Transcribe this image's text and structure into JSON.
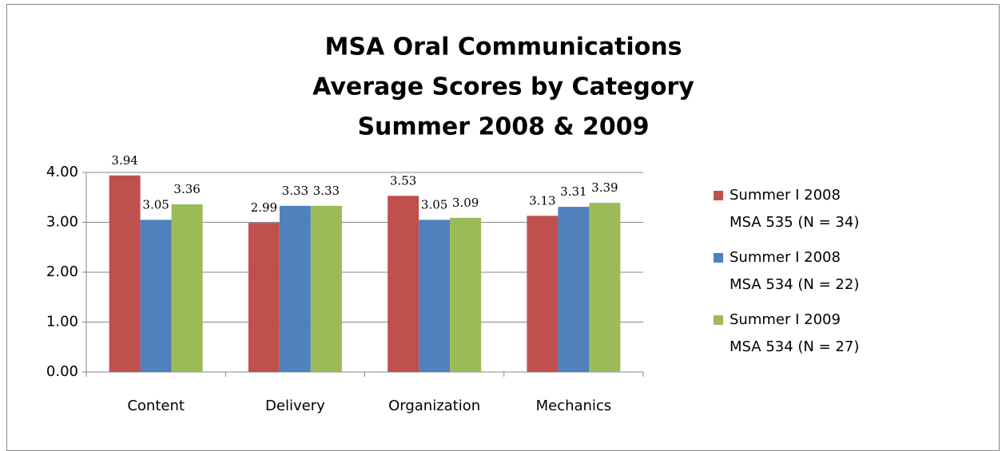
{
  "chart_data": {
    "type": "bar",
    "title": [
      "MSA Oral Communications",
      "Average Scores by Category",
      "Summer 2008 & 2009"
    ],
    "categories": [
      "Content",
      "Delivery",
      "Organization",
      "Mechanics"
    ],
    "series": [
      {
        "name": "Summer I 2008\nMSA 535 (N = 34)",
        "color": "#c0504d",
        "values": [
          3.94,
          2.99,
          3.53,
          3.13
        ]
      },
      {
        "name": "Summer I 2008\nMSA 534 (N = 22)",
        "color": "#4f81bd",
        "values": [
          3.05,
          3.33,
          3.05,
          3.31
        ]
      },
      {
        "name": "Summer I 2009\nMSA 534 (N = 27)",
        "color": "#9bbb59",
        "values": [
          3.36,
          3.33,
          3.09,
          3.39
        ]
      }
    ],
    "ylim": [
      0,
      4
    ],
    "yticks": [
      {
        "value": 0,
        "label": "0.00"
      },
      {
        "value": 1,
        "label": "1.00"
      },
      {
        "value": 2,
        "label": "2.00"
      },
      {
        "value": 3,
        "label": "3.00"
      },
      {
        "value": 4,
        "label": "4.00"
      }
    ],
    "grid": true,
    "legend": "right"
  }
}
